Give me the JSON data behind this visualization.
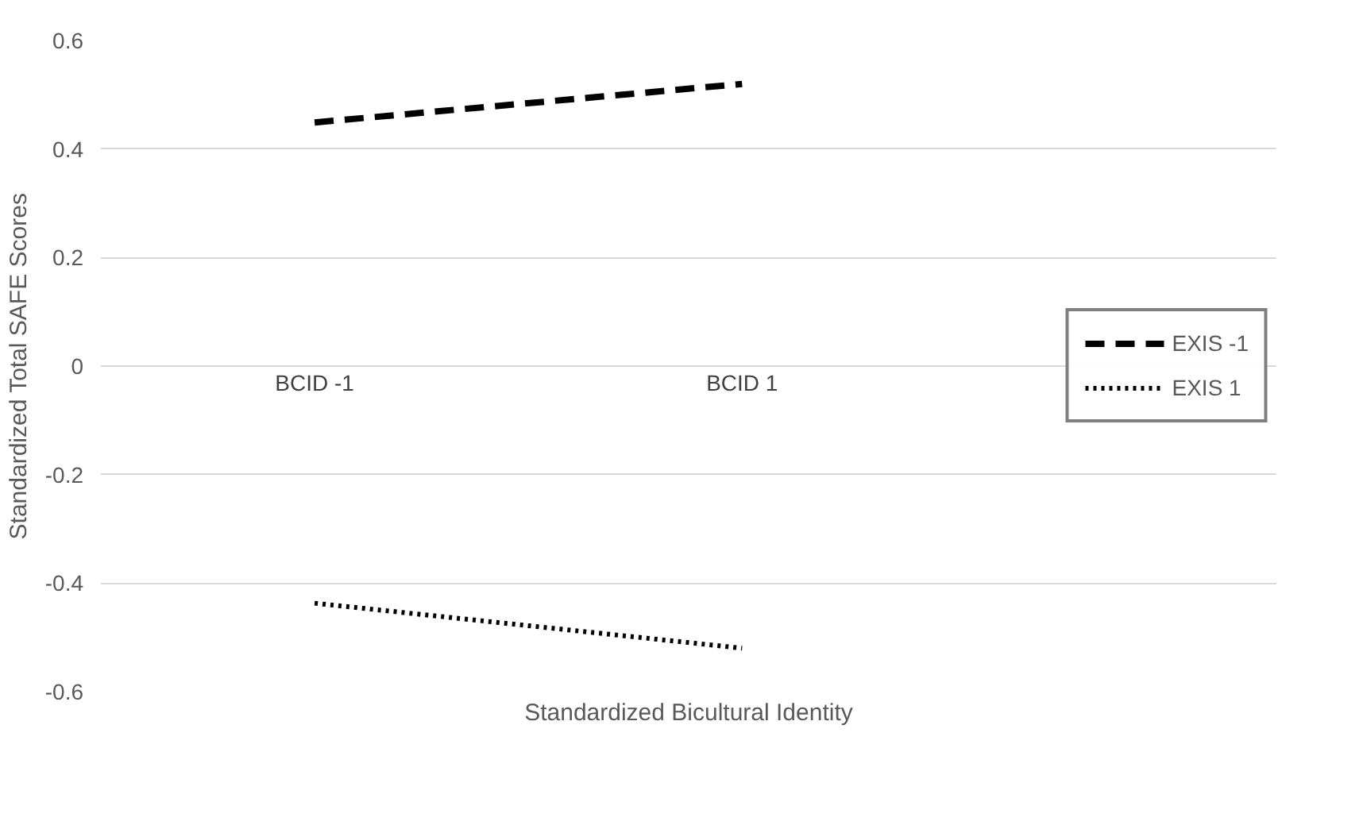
{
  "chart_data": {
    "type": "line",
    "categories": [
      "BCID -1",
      "BCID 1"
    ],
    "xlabel": "Standardized Bicultural Identity",
    "ylabel": "Standardized Total SAFE Scores",
    "series": [
      {
        "name": "EXIS -1",
        "color": "#000000",
        "values": [
          0.449,
          0.52
        ],
        "line_style": "dashed"
      },
      {
        "name": "EXIS 1",
        "color": "#000000",
        "values": [
          -0.437,
          -0.52
        ],
        "line_style": "dotted"
      }
    ],
    "ylim": [
      -0.6,
      0.6
    ],
    "yticks": [
      -0.6,
      -0.4,
      -0.2,
      0,
      0.2,
      0.4,
      0.6
    ],
    "grid": "y",
    "legend": "right",
    "marker": "none"
  }
}
